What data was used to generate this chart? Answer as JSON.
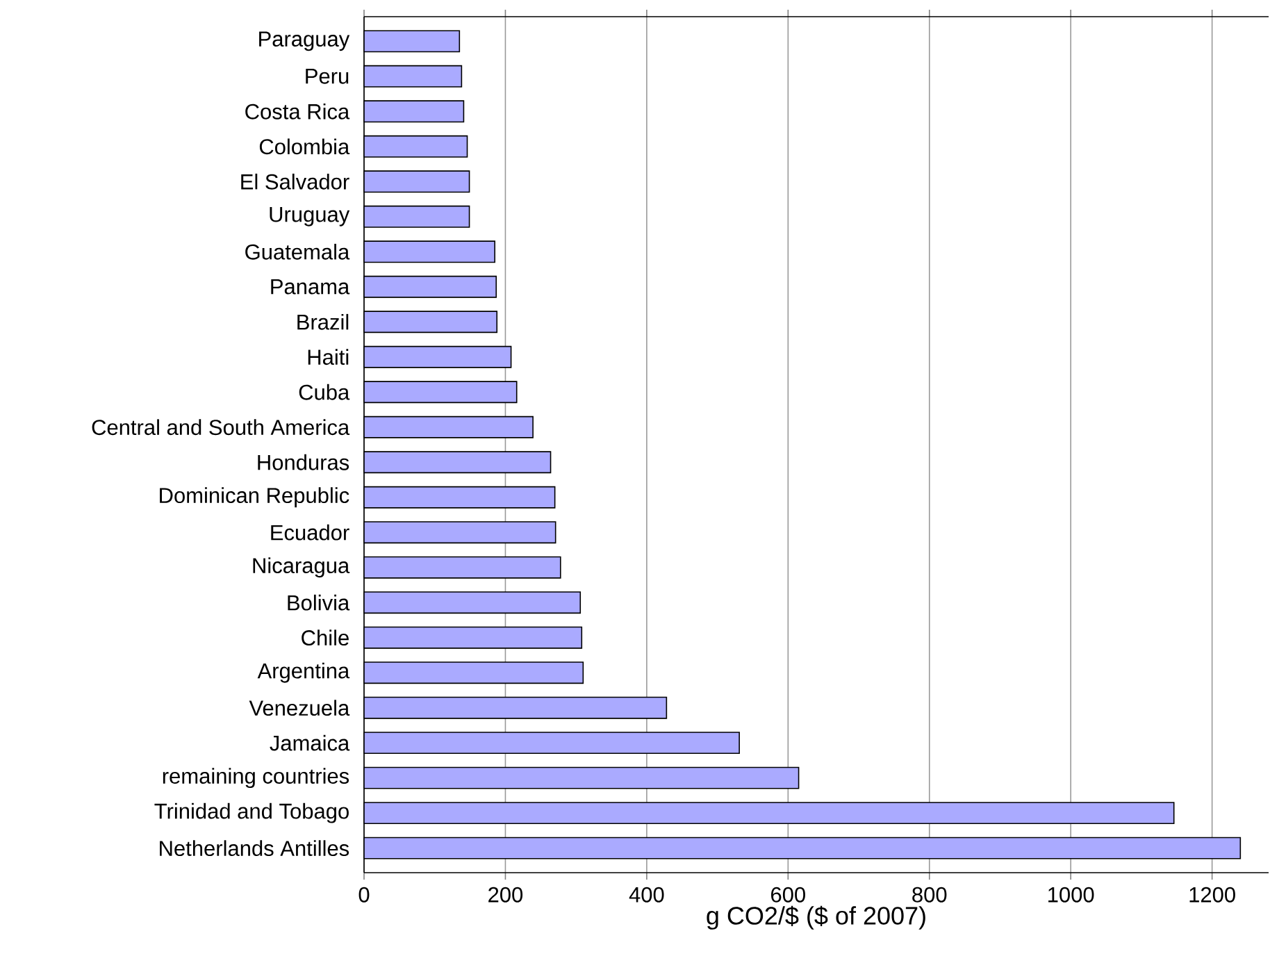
{
  "chart_data": {
    "type": "bar",
    "orientation": "horizontal",
    "xlabel": "g CO2/$   ($ of 2007)",
    "categories": [
      "Paraguay",
      "Peru",
      "Costa Rica",
      "Colombia",
      "El Salvador",
      "Uruguay",
      "Guatemala",
      "Panama",
      "Brazil",
      "Haiti",
      "Cuba",
      "Central and South America",
      "Honduras",
      "Dominican Republic",
      "Ecuador",
      "Nicaragua",
      "Bolivia",
      "Chile",
      "Argentina",
      "Venezuela",
      "Jamaica",
      "remaining countries",
      "Trinidad and Tobago",
      "Netherlands Antilles"
    ],
    "values": [
      135,
      138,
      141,
      146,
      149,
      149,
      185,
      187,
      188,
      208,
      216,
      239,
      264,
      270,
      271,
      278,
      306,
      308,
      310,
      428,
      531,
      615,
      1146,
      1240
    ],
    "color": "#aaaaff",
    "xlim": [
      0,
      1280
    ],
    "xticks": [
      0,
      200,
      400,
      600,
      800,
      1000,
      1200
    ],
    "grid": "x"
  }
}
